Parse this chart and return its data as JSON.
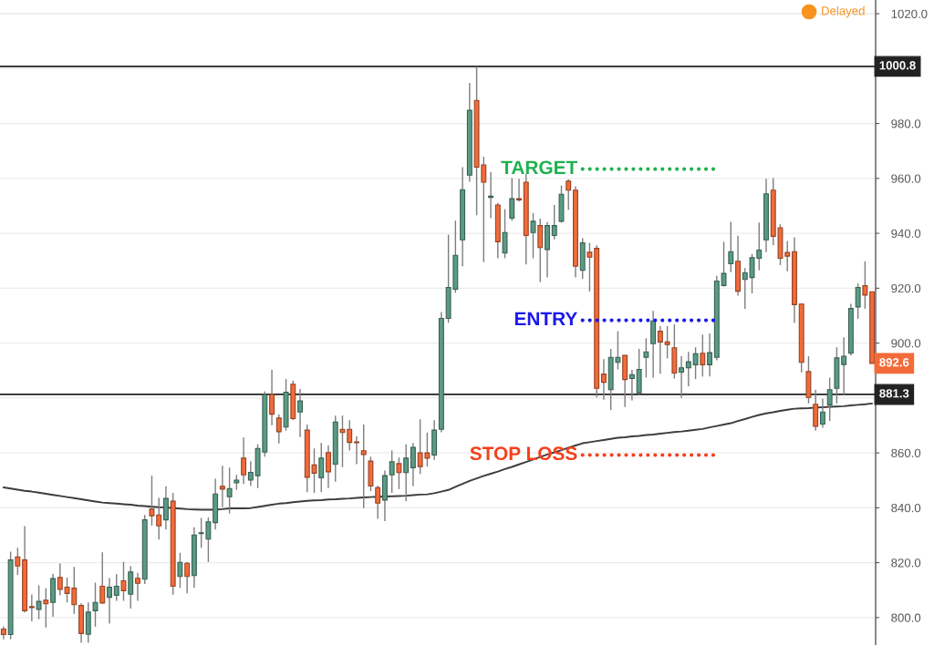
{
  "chart_data": {
    "type": "candlestick",
    "categories": [
      null,
      null,
      null,
      null,
      null,
      null,
      null,
      null,
      null,
      null,
      null,
      null,
      null,
      null,
      null,
      null,
      null,
      null,
      null,
      null,
      null,
      null,
      null,
      null,
      null,
      null,
      null,
      null,
      null,
      null,
      null,
      null,
      null,
      null,
      null,
      null,
      null,
      null,
      null,
      null,
      null,
      null,
      null,
      null,
      null,
      null,
      null,
      null,
      null,
      null,
      null,
      null,
      null,
      null,
      null,
      null,
      null,
      null,
      null,
      null,
      null,
      null,
      null,
      null,
      null,
      null,
      null,
      null,
      null,
      null,
      null,
      null,
      null,
      null,
      null,
      null,
      null,
      null,
      null,
      null,
      null,
      null,
      null,
      null,
      null,
      null,
      null,
      null,
      null,
      null,
      null,
      null,
      null,
      null,
      null,
      null,
      null,
      null,
      null,
      null,
      null,
      null,
      null,
      null,
      null,
      null,
      null,
      null,
      null,
      null,
      null,
      null,
      null,
      null,
      null,
      null,
      null,
      null,
      null,
      null,
      null,
      null,
      null,
      null
    ],
    "ohlc": [
      [
        795.8,
        796.8,
        792.1,
        793.8
      ],
      [
        793.8,
        824.0,
        792.1,
        821.0
      ],
      [
        822.1,
        825.4,
        815.5,
        818.8
      ],
      [
        821.0,
        833.3,
        801.9,
        802.5
      ],
      [
        804.0,
        808.4,
        798.6,
        803.6
      ],
      [
        803.0,
        811.8,
        799.4,
        805.9
      ],
      [
        806.3,
        810.7,
        796.4,
        805.0
      ],
      [
        805.5,
        816.0,
        800.3,
        814.2
      ],
      [
        814.6,
        819.7,
        808.1,
        810.3
      ],
      [
        811.1,
        814.6,
        805.5,
        808.8
      ],
      [
        810.7,
        818.5,
        801.4,
        804.7
      ],
      [
        804.4,
        805.2,
        790.8,
        794.2
      ],
      [
        793.9,
        805.5,
        790.8,
        802.0
      ],
      [
        802.5,
        812.7,
        796.7,
        805.5
      ],
      [
        811.4,
        823.8,
        805.0,
        805.3
      ],
      [
        807.4,
        814.4,
        797.8,
        811.1
      ],
      [
        808.1,
        815.8,
        806.1,
        811.4
      ],
      [
        813.4,
        820.3,
        806.1,
        809.8
      ],
      [
        808.5,
        818.7,
        803.3,
        816.6
      ],
      [
        814.3,
        816.3,
        806.1,
        812.5
      ],
      [
        814.0,
        837.4,
        812.2,
        835.6
      ],
      [
        839.5,
        851.7,
        833.5,
        837.1
      ],
      [
        837.4,
        843.6,
        828.4,
        833.4
      ],
      [
        835.6,
        847.8,
        832.1,
        843.4
      ],
      [
        842.4,
        845.4,
        808.3,
        811.4
      ],
      [
        815.0,
        823.6,
        810.8,
        820.1
      ],
      [
        819.8,
        820.3,
        808.8,
        815.0
      ],
      [
        815.3,
        832.9,
        810.8,
        830.1
      ],
      [
        830.6,
        836.3,
        825.4,
        830.9
      ],
      [
        828.6,
        836.5,
        820.3,
        834.9
      ],
      [
        834.6,
        850.6,
        832.1,
        845.0
      ],
      [
        847.8,
        855.3,
        840.2,
        846.8
      ],
      [
        844.0,
        854.6,
        837.9,
        847.0
      ],
      [
        849.1,
        852.0,
        846.5,
        850.1
      ],
      [
        858.1,
        865.6,
        848.7,
        852.0
      ],
      [
        850.1,
        857.0,
        847.9,
        852.9
      ],
      [
        851.7,
        863.1,
        847.2,
        861.6
      ],
      [
        860.3,
        882.4,
        858.6,
        881.3
      ],
      [
        881.3,
        890.2,
        870.1,
        874.1
      ],
      [
        872.7,
        874.1,
        863.4,
        867.7
      ],
      [
        869.4,
        886.9,
        868.1,
        882.1
      ],
      [
        885.0,
        886.3,
        871.9,
        872.5
      ],
      [
        874.9,
        883.3,
        865.8,
        878.9
      ],
      [
        868.3,
        870.3,
        845.7,
        851.1
      ],
      [
        855.6,
        861.6,
        845.4,
        852.6
      ],
      [
        850.9,
        863.6,
        845.7,
        858.1
      ],
      [
        860.1,
        862.7,
        847.2,
        853.1
      ],
      [
        855.9,
        873.6,
        849.5,
        871.2
      ],
      [
        868.6,
        873.6,
        854.8,
        867.4
      ],
      [
        868.6,
        871.9,
        860.9,
        863.8
      ],
      [
        864.0,
        866.0,
        855.9,
        863.7
      ],
      [
        860.8,
        870.3,
        839.9,
        859.4
      ],
      [
        857.0,
        858.6,
        846.1,
        847.9
      ],
      [
        847.3,
        848.1,
        836.0,
        841.7
      ],
      [
        842.8,
        853.6,
        835.1,
        851.7
      ],
      [
        852.0,
        860.9,
        845.4,
        856.8
      ],
      [
        856.1,
        858.3,
        846.8,
        852.8
      ],
      [
        852.8,
        863.1,
        842.4,
        858.1
      ],
      [
        854.6,
        863.6,
        847.9,
        862.0
      ],
      [
        860.0,
        872.2,
        852.3,
        855.0
      ],
      [
        860.0,
        867.4,
        855.0,
        858.1
      ],
      [
        859.2,
        871.9,
        857.5,
        868.3
      ],
      [
        868.6,
        911.3,
        867.5,
        909.0
      ],
      [
        909.0,
        939.5,
        907.4,
        920.3
      ],
      [
        919.6,
        944.6,
        918.3,
        932.0
      ],
      [
        937.6,
        964.1,
        928.0,
        955.9
      ],
      [
        961.2,
        994.8,
        958.8,
        984.8
      ],
      [
        988.4,
        1000.8,
        946.6,
        964.1
      ],
      [
        964.9,
        967.9,
        929.5,
        958.6
      ],
      [
        953.1,
        962.3,
        945.5,
        953.5
      ],
      [
        950.3,
        951.1,
        930.9,
        936.9
      ],
      [
        932.8,
        948.8,
        930.9,
        940.3
      ],
      [
        945.5,
        960.1,
        944.6,
        952.6
      ],
      [
        952.6,
        959.9,
        951.6,
        952.2
      ],
      [
        958.6,
        961.6,
        928.7,
        939.2
      ],
      [
        940.3,
        947.4,
        930.9,
        944.4
      ],
      [
        942.8,
        945.3,
        922.3,
        934.8
      ],
      [
        934.1,
        944.1,
        923.9,
        942.8
      ],
      [
        939.2,
        950.3,
        937.8,
        942.8
      ],
      [
        944.4,
        957.4,
        943.9,
        954.2
      ],
      [
        959.0,
        959.7,
        948.6,
        955.7
      ],
      [
        955.7,
        957.1,
        923.9,
        928.0
      ],
      [
        926.5,
        938.3,
        923.4,
        936.5
      ],
      [
        933.1,
        936.5,
        918.8,
        931.3
      ],
      [
        934.5,
        935.6,
        880.2,
        883.5
      ],
      [
        888.7,
        894.1,
        879.4,
        885.7
      ],
      [
        883.0,
        897.9,
        875.6,
        894.8
      ],
      [
        893.0,
        904.3,
        890.4,
        894.8
      ],
      [
        895.5,
        895.5,
        876.7,
        886.7
      ],
      [
        887.1,
        890.2,
        879.1,
        888.5
      ],
      [
        881.9,
        897.9,
        881.3,
        890.4
      ],
      [
        894.8,
        901.8,
        887.4,
        896.8
      ],
      [
        899.8,
        911.7,
        887.4,
        908.1
      ],
      [
        904.3,
        906.2,
        888.8,
        900.4
      ],
      [
        900.4,
        906.2,
        894.4,
        899.5
      ],
      [
        898.3,
        906.8,
        887.1,
        889.1
      ],
      [
        889.4,
        895.2,
        880.0,
        891.0
      ],
      [
        891.0,
        896.8,
        884.3,
        893.2
      ],
      [
        892.1,
        898.5,
        886.9,
        896.1
      ],
      [
        896.3,
        903.1,
        887.8,
        892.1
      ],
      [
        892.1,
        903.5,
        887.8,
        896.5
      ],
      [
        894.8,
        924.5,
        893.7,
        922.6
      ],
      [
        921.0,
        936.9,
        920.6,
        925.4
      ],
      [
        928.9,
        944.2,
        925.8,
        933.3
      ],
      [
        929.8,
        939.1,
        917.3,
        918.9
      ],
      [
        923.2,
        927.3,
        912.5,
        925.6
      ],
      [
        923.9,
        932.5,
        918.1,
        931.1
      ],
      [
        930.9,
        943.9,
        926.5,
        933.9
      ],
      [
        937.6,
        959.9,
        933.1,
        954.4
      ],
      [
        955.7,
        960.1,
        935.6,
        938.9
      ],
      [
        942.0,
        943.3,
        928.4,
        930.9
      ],
      [
        933.0,
        937.2,
        926.2,
        931.7
      ],
      [
        933.3,
        938.5,
        907.3,
        914.0
      ],
      [
        914.2,
        914.5,
        889.3,
        893.0
      ],
      [
        889.6,
        895.2,
        878.0,
        880.2
      ],
      [
        877.7,
        883.0,
        868.1,
        869.7
      ],
      [
        870.5,
        879.7,
        869.2,
        874.9
      ],
      [
        877.5,
        887.4,
        871.6,
        883.0
      ],
      [
        883.5,
        898.5,
        877.9,
        894.6
      ],
      [
        892.2,
        902.1,
        881.1,
        895.2
      ],
      [
        896.3,
        914.3,
        895.5,
        912.6
      ],
      [
        913.2,
        921.7,
        908.8,
        920.3
      ],
      [
        920.9,
        929.8,
        912.5,
        917.5
      ],
      [
        918.7,
        918.7,
        892.6,
        892.6
      ]
    ],
    "colors": [
      "#f26b3a",
      "#5b9b84",
      "#f26b3a",
      "#f26b3a",
      "#f26b3a",
      "#5b9b84",
      "#f26b3a",
      "#5b9b84",
      "#f26b3a",
      "#f26b3a",
      "#f26b3a",
      "#f26b3a",
      "#5b9b84",
      "#5b9b84",
      "#f26b3a",
      "#5b9b84",
      "#5b9b84",
      "#f26b3a",
      "#5b9b84",
      "#f26b3a",
      "#5b9b84",
      "#f26b3a",
      "#f26b3a",
      "#5b9b84",
      "#f26b3a",
      "#5b9b84",
      "#f26b3a",
      "#5b9b84",
      "#5b9b84",
      "#5b9b84",
      "#5b9b84",
      "#f26b3a",
      "#5b9b84",
      "#5b9b84",
      "#f26b3a",
      "#5b9b84",
      "#5b9b84",
      "#5b9b84",
      "#f26b3a",
      "#f26b3a",
      "#5b9b84",
      "#f26b3a",
      "#5b9b84",
      "#f26b3a",
      "#f26b3a",
      "#5b9b84",
      "#f26b3a",
      "#5b9b84",
      "#f26b3a",
      "#f26b3a",
      "#f26b3a",
      "#f26b3a",
      "#f26b3a",
      "#f26b3a",
      "#5b9b84",
      "#5b9b84",
      "#f26b3a",
      "#5b9b84",
      "#5b9b84",
      "#f26b3a",
      "#f26b3a",
      "#5b9b84",
      "#5b9b84",
      "#5b9b84",
      "#5b9b84",
      "#5b9b84",
      "#5b9b84",
      "#f26b3a",
      "#f26b3a",
      "#5b9b84",
      "#f26b3a",
      "#5b9b84",
      "#5b9b84",
      "#f26b3a",
      "#f26b3a",
      "#5b9b84",
      "#f26b3a",
      "#5b9b84",
      "#5b9b84",
      "#5b9b84",
      "#f26b3a",
      "#f26b3a",
      "#5b9b84",
      "#f26b3a",
      "#f26b3a",
      "#f26b3a",
      "#5b9b84",
      "#5b9b84",
      "#f26b3a",
      "#5b9b84",
      "#5b9b84",
      "#5b9b84",
      "#5b9b84",
      "#f26b3a",
      "#f26b3a",
      "#f26b3a",
      "#5b9b84",
      "#5b9b84",
      "#5b9b84",
      "#f26b3a",
      "#5b9b84",
      "#5b9b84",
      "#5b9b84",
      "#5b9b84",
      "#f26b3a",
      "#5b9b84",
      "#5b9b84",
      "#5b9b84",
      "#5b9b84",
      "#f26b3a",
      "#f26b3a",
      "#f26b3a",
      "#f26b3a",
      "#f26b3a",
      "#f26b3a",
      "#f26b3a",
      "#5b9b84",
      "#5b9b84",
      "#5b9b84",
      "#5b9b84",
      "#5b9b84",
      "#5b9b84",
      "#f26b3a",
      "#f26b3a"
    ],
    "series": [
      {
        "type": "line",
        "color": "#3c3c3c",
        "line_style": "solid",
        "values": [
          847.4,
          847.0,
          846.6,
          846.2,
          845.9,
          845.5,
          845.1,
          844.7,
          844.3,
          843.9,
          843.5,
          843.1,
          842.7,
          842.3,
          841.9,
          841.7,
          841.5,
          841.3,
          841.1,
          840.8,
          840.6,
          840.4,
          840.2,
          840.1,
          839.9,
          839.7,
          839.5,
          839.4,
          839.3,
          839.3,
          839.3,
          839.5,
          839.8,
          839.8,
          839.8,
          839.9,
          840.3,
          840.7,
          841.1,
          841.5,
          841.7,
          842.0,
          842.3,
          842.5,
          842.7,
          842.8,
          843.0,
          843.1,
          843.3,
          843.4,
          843.6,
          843.8,
          843.9,
          844.0,
          844.1,
          844.2,
          844.3,
          844.4,
          844.6,
          844.8,
          844.9,
          845.3,
          845.9,
          846.5,
          847.6,
          848.7,
          849.8,
          850.7,
          851.6,
          852.4,
          853.2,
          854.1,
          854.9,
          855.8,
          856.7,
          857.6,
          858.5,
          859.4,
          860.2,
          861.0,
          861.9,
          862.7,
          863.5,
          863.9,
          864.3,
          864.7,
          865.1,
          865.5,
          865.7,
          866.0,
          866.2,
          866.5,
          866.7,
          867.0,
          867.3,
          867.6,
          867.8,
          868.1,
          868.4,
          868.7,
          869.3,
          869.8,
          870.3,
          870.8,
          871.6,
          872.3,
          873.1,
          873.8,
          874.4,
          874.8,
          875.3,
          875.7,
          876.1,
          876.2,
          876.3,
          876.5,
          876.6,
          876.8,
          876.9,
          877.0,
          877.3,
          877.5,
          877.7,
          878.0
        ]
      },
      {
        "type": "line",
        "name": "TARGET",
        "color": "#1fb14f",
        "line_style": "dotted",
        "values": [
          null,
          null,
          null,
          null,
          null,
          null,
          null,
          null,
          null,
          null,
          null,
          null,
          null,
          null,
          null,
          null,
          null,
          null,
          null,
          null,
          null,
          null,
          null,
          null,
          null,
          null,
          null,
          null,
          null,
          null,
          null,
          null,
          null,
          null,
          null,
          null,
          null,
          null,
          null,
          null,
          null,
          null,
          null,
          null,
          null,
          null,
          null,
          null,
          null,
          null,
          null,
          null,
          null,
          null,
          null,
          null,
          null,
          null,
          null,
          null,
          null,
          null,
          null,
          null,
          null,
          null,
          null,
          null,
          null,
          null,
          null,
          null,
          null,
          null,
          null,
          null,
          null,
          null,
          null,
          null,
          null,
          null,
          963.4,
          963.4,
          963.4,
          963.4,
          963.4,
          963.4,
          963.4,
          963.4,
          963.4,
          963.4,
          963.4,
          963.4,
          963.4,
          963.4,
          963.4,
          963.4,
          963.4,
          963.4,
          963.4,
          963.4,
          null,
          null,
          null,
          null,
          null,
          null,
          null,
          null,
          null,
          null,
          null,
          null,
          null,
          null,
          null,
          null,
          null,
          null,
          null,
          null,
          null,
          null
        ]
      },
      {
        "type": "line",
        "name": "ENTRY",
        "color": "#1a1aeb",
        "line_style": "dotted",
        "values": [
          null,
          null,
          null,
          null,
          null,
          null,
          null,
          null,
          null,
          null,
          null,
          null,
          null,
          null,
          null,
          null,
          null,
          null,
          null,
          null,
          null,
          null,
          null,
          null,
          null,
          null,
          null,
          null,
          null,
          null,
          null,
          null,
          null,
          null,
          null,
          null,
          null,
          null,
          null,
          null,
          null,
          null,
          null,
          null,
          null,
          null,
          null,
          null,
          null,
          null,
          null,
          null,
          null,
          null,
          null,
          null,
          null,
          null,
          null,
          null,
          null,
          null,
          null,
          null,
          null,
          null,
          null,
          null,
          null,
          null,
          null,
          null,
          null,
          null,
          null,
          null,
          null,
          null,
          null,
          null,
          null,
          null,
          908.3,
          908.3,
          908.3,
          908.3,
          908.3,
          908.3,
          908.3,
          908.3,
          908.3,
          908.3,
          908.3,
          908.3,
          908.3,
          908.3,
          908.3,
          908.3,
          908.3,
          908.3,
          908.3,
          908.3,
          null,
          null,
          null,
          null,
          null,
          null,
          null,
          null,
          null,
          null,
          null,
          null,
          null,
          null,
          null,
          null,
          null,
          null,
          null,
          null,
          null,
          null
        ]
      },
      {
        "type": "line",
        "name": "STOP LOSS",
        "color": "#f5401c",
        "line_style": "dotted",
        "values": [
          null,
          null,
          null,
          null,
          null,
          null,
          null,
          null,
          null,
          null,
          null,
          null,
          null,
          null,
          null,
          null,
          null,
          null,
          null,
          null,
          null,
          null,
          null,
          null,
          null,
          null,
          null,
          null,
          null,
          null,
          null,
          null,
          null,
          null,
          null,
          null,
          null,
          null,
          null,
          null,
          null,
          null,
          null,
          null,
          null,
          null,
          null,
          null,
          null,
          null,
          null,
          null,
          null,
          null,
          null,
          null,
          null,
          null,
          null,
          null,
          null,
          null,
          null,
          null,
          null,
          null,
          null,
          null,
          null,
          null,
          null,
          null,
          null,
          null,
          null,
          null,
          null,
          null,
          null,
          null,
          null,
          null,
          859.2,
          859.2,
          859.2,
          859.2,
          859.2,
          859.2,
          859.2,
          859.2,
          859.2,
          859.2,
          859.2,
          859.2,
          859.2,
          859.2,
          859.2,
          859.2,
          859.2,
          859.2,
          859.2,
          859.2,
          null,
          null,
          null,
          null,
          null,
          null,
          null,
          null,
          null,
          null,
          null,
          null,
          null,
          null,
          null,
          null,
          null,
          null,
          null,
          null,
          null,
          null
        ]
      }
    ],
    "ylim": [
      790,
      1025
    ],
    "yticks": [
      {
        "value": 800,
        "label": "800.0"
      },
      {
        "value": 820,
        "label": "820.0"
      },
      {
        "value": 840,
        "label": "840.0"
      },
      {
        "value": 860,
        "label": "860.0"
      },
      {
        "value": 880,
        "label": null
      },
      {
        "value": 900,
        "label": "900.0"
      },
      {
        "value": 920,
        "label": "920.0"
      },
      {
        "value": 940,
        "label": "940.0"
      },
      {
        "value": 960,
        "label": "960.0"
      },
      {
        "value": 980,
        "label": "980.0"
      },
      {
        "value": 1000,
        "label": null
      },
      {
        "value": 1020,
        "label": "1020.0"
      }
    ],
    "ref_lines": [
      {
        "axis": "y",
        "value": 1000.8,
        "label": "1000.8",
        "color": "#222222"
      },
      {
        "axis": "y",
        "value": 881.3,
        "label": "881.3",
        "color": "#222222"
      }
    ],
    "annotations": [
      "Delayed",
      {
        "text": "892.6",
        "y": 892.6
      }
    ],
    "grid": "y",
    "tick_labels": "y"
  }
}
